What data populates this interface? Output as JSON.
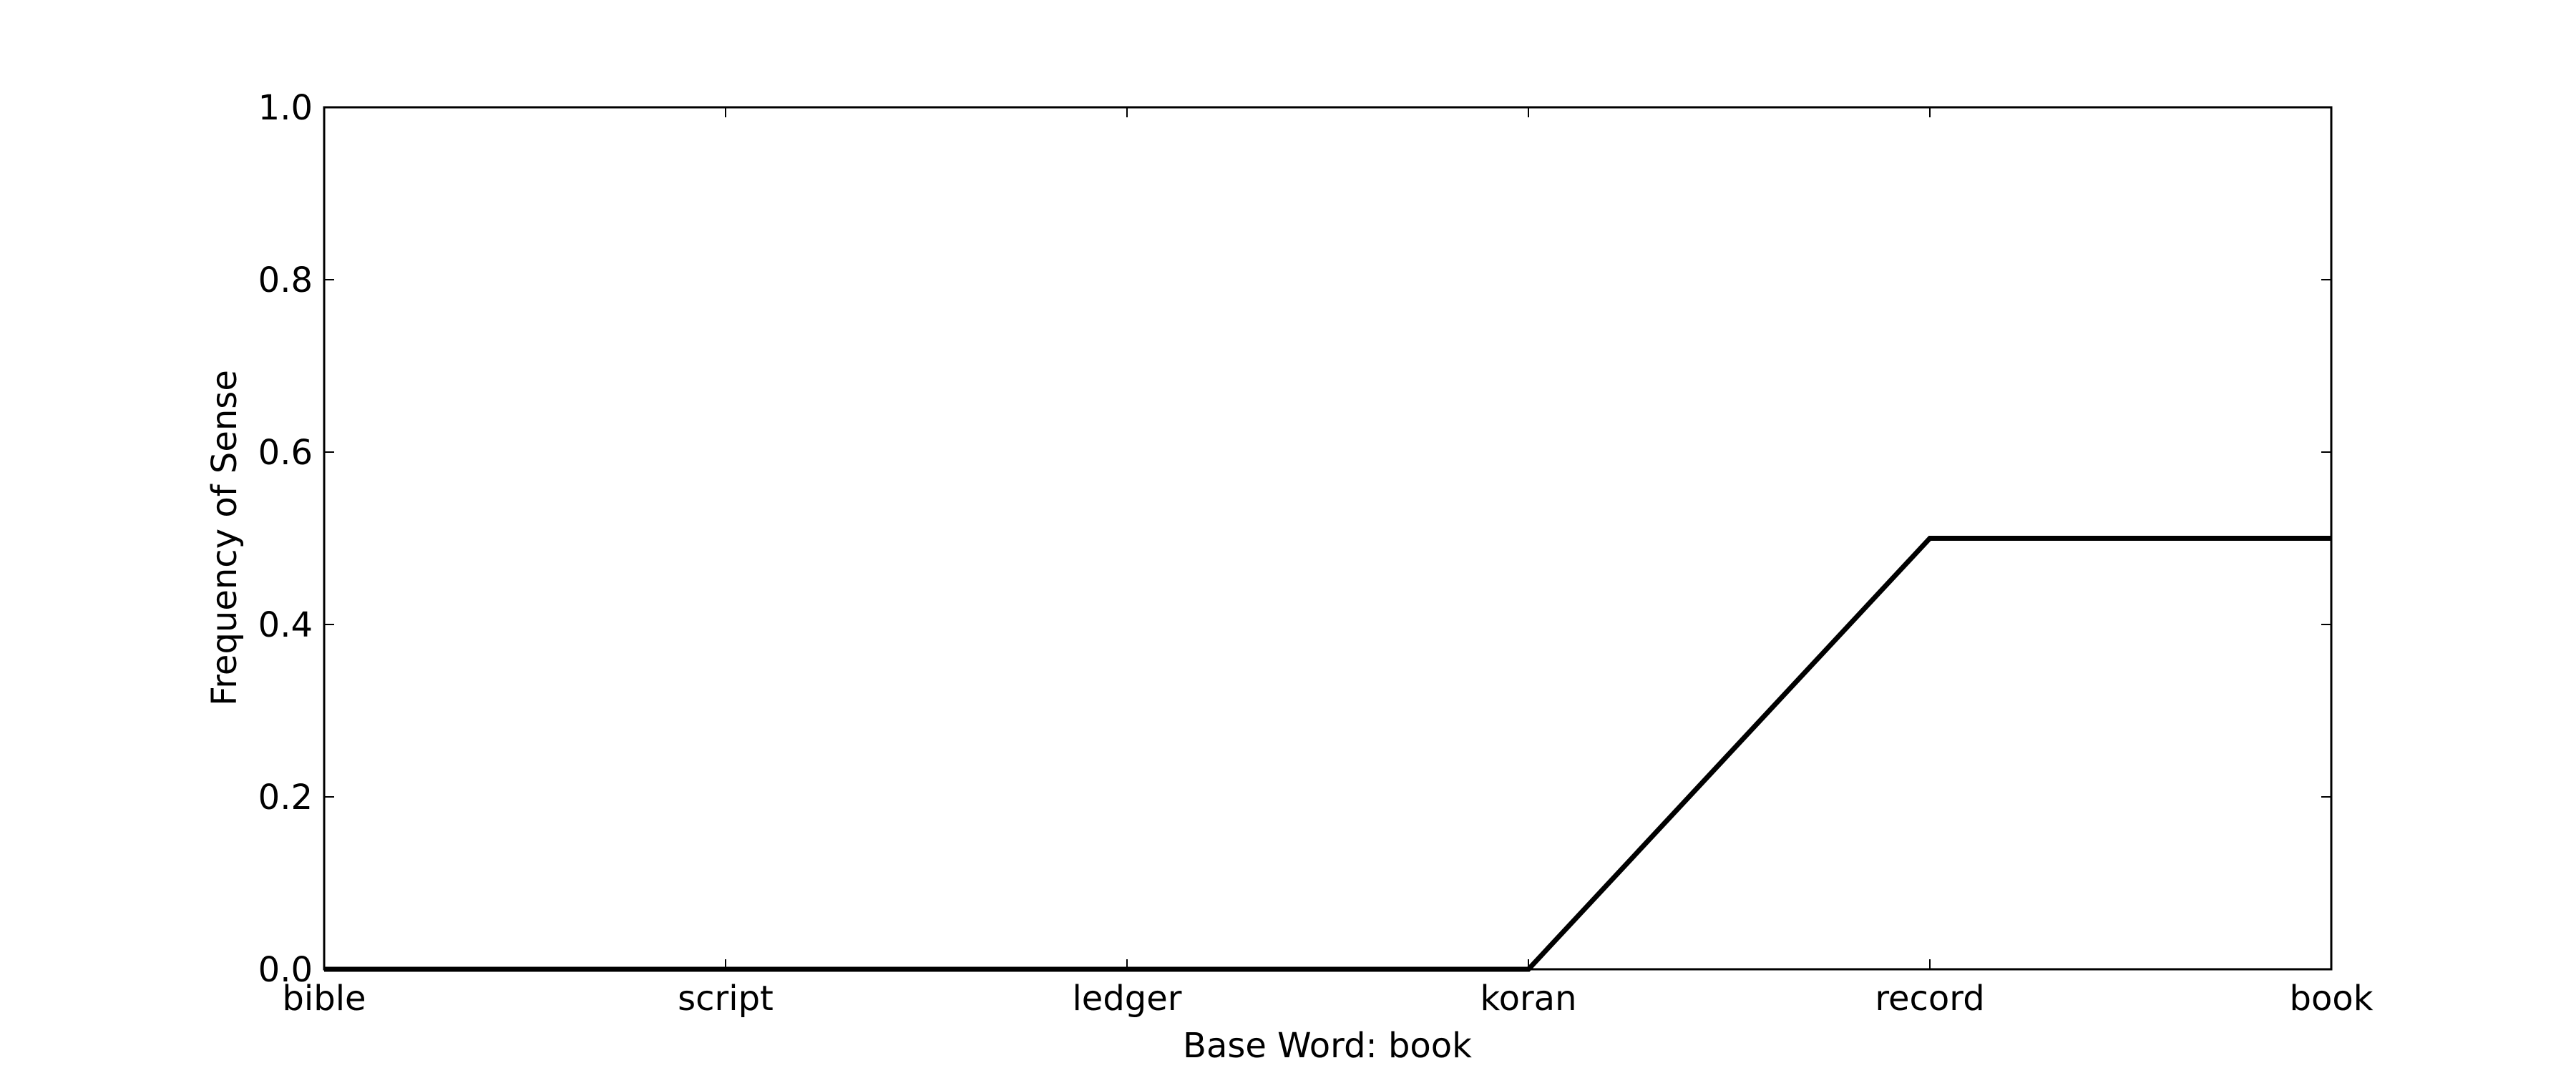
{
  "chart_data": {
    "type": "line",
    "xlabel": "Base Word: book",
    "ylabel": "Frequency of Sense",
    "categories": [
      "bible",
      "script",
      "ledger",
      "koran",
      "record",
      "book"
    ],
    "series": [
      {
        "values": [
          0.0,
          0.0,
          0.0,
          0.0,
          0.5,
          0.5
        ],
        "color": "#000000"
      }
    ],
    "ylim": [
      0.0,
      1.0
    ],
    "yticks": [
      "0.0",
      "0.2",
      "0.4",
      "0.6",
      "0.8",
      "1.0"
    ],
    "grid": false,
    "legend": "none"
  }
}
